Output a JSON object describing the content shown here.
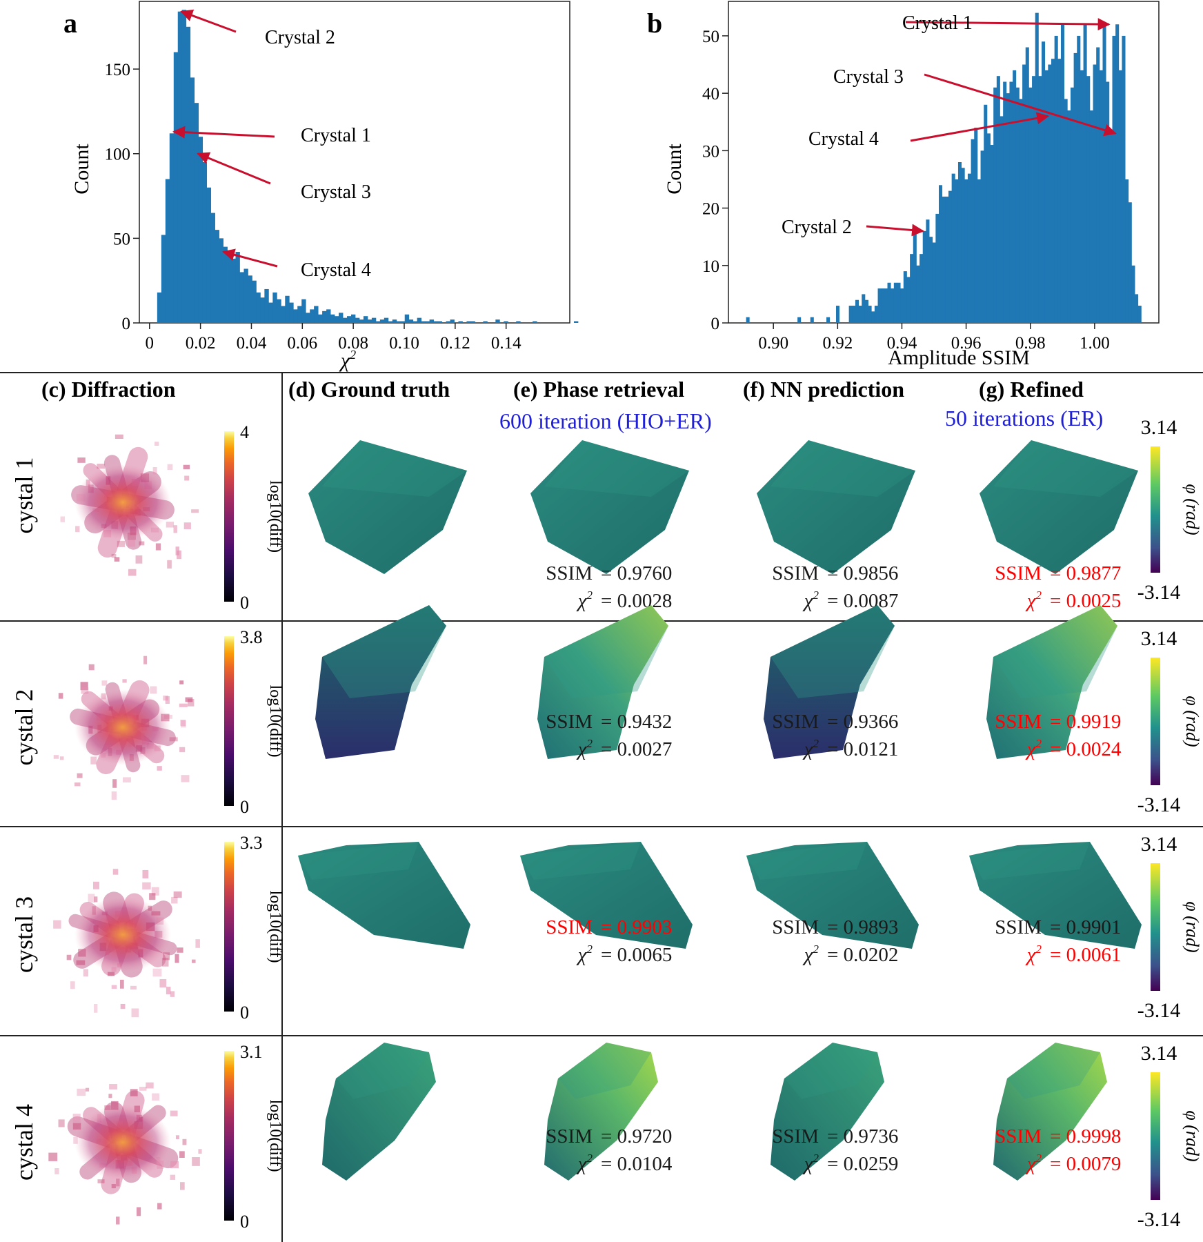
{
  "chart_data": [
    {
      "type": "bar",
      "panel_label": "a",
      "xlabel": "χ",
      "xlabel_superscript": "2",
      "ylabel": "Count",
      "xlim": [
        -0.004,
        0.165
      ],
      "ylim": [
        0,
        190
      ],
      "x_ticks": [
        "0",
        "0.02",
        "0.04",
        "0.06",
        "0.08",
        "0.10",
        "0.12",
        "0.14"
      ],
      "x_tick_values": [
        0,
        0.02,
        0.04,
        0.06,
        0.08,
        0.1,
        0.12,
        0.14
      ],
      "y_ticks": [
        "0",
        "50",
        "100",
        "150"
      ],
      "y_tick_values": [
        0,
        50,
        100,
        150
      ],
      "bin_start": 0.003,
      "bin_width": 0.00162,
      "values": [
        18,
        52,
        85,
        112,
        160,
        184,
        185,
        175,
        145,
        130,
        110,
        95,
        80,
        65,
        55,
        50,
        45,
        40,
        38,
        42,
        30,
        32,
        28,
        25,
        18,
        15,
        20,
        12,
        18,
        14,
        10,
        16,
        12,
        8,
        10,
        14,
        6,
        8,
        10,
        5,
        7,
        8,
        5,
        4,
        6,
        3,
        4,
        5,
        3,
        2,
        4,
        2,
        3,
        1,
        2,
        3,
        1,
        2,
        1,
        1,
        5,
        2,
        1,
        3,
        1,
        1,
        2,
        1,
        1,
        0,
        1,
        2,
        0,
        1,
        0,
        1,
        1,
        0,
        0,
        1,
        0,
        0,
        2,
        0,
        1,
        0,
        0,
        1,
        0,
        0,
        0,
        1,
        0,
        0,
        0,
        0,
        0,
        0,
        0,
        0,
        0,
        1
      ],
      "annotations": [
        {
          "label": "Crystal 2",
          "x": 0.0125,
          "y": 184
        },
        {
          "label": "Crystal 1",
          "x": 0.0095,
          "y": 113
        },
        {
          "label": "Crystal 3",
          "x": 0.019,
          "y": 100
        },
        {
          "label": "Crystal 4",
          "x": 0.029,
          "y": 42
        }
      ]
    },
    {
      "type": "bar",
      "panel_label": "b",
      "xlabel": "Amplitude SSIM",
      "ylabel": "Count",
      "xlim": [
        0.886,
        1.02
      ],
      "ylim": [
        0,
        56
      ],
      "x_ticks": [
        "0.90",
        "0.92",
        "0.94",
        "0.96",
        "0.98",
        "1.00"
      ],
      "x_tick_values": [
        0.9,
        0.92,
        0.94,
        0.96,
        0.98,
        1.0
      ],
      "y_ticks": [
        "0",
        "10",
        "20",
        "30",
        "40",
        "50"
      ],
      "y_tick_values": [
        0,
        10,
        20,
        30,
        40,
        50
      ],
      "bin_start": 0.8915,
      "bin_width": 0.001,
      "values": [
        1,
        0,
        0,
        0,
        0,
        0,
        0,
        0,
        0,
        0,
        0,
        0,
        0,
        0,
        0,
        0,
        1,
        0,
        0,
        0,
        1,
        0,
        0,
        0,
        0,
        1,
        0,
        0,
        3,
        0,
        0,
        0,
        3,
        3,
        4,
        3,
        5,
        4,
        3,
        2,
        3,
        6,
        6,
        6,
        7,
        6,
        7,
        7,
        6,
        9,
        8,
        12,
        16,
        10,
        12,
        16,
        18,
        15,
        14,
        19,
        24,
        22,
        22,
        23,
        26,
        25,
        28,
        27,
        25,
        26,
        32,
        34,
        25,
        30,
        38,
        33,
        31,
        41,
        43,
        36,
        42,
        40,
        42,
        44,
        41,
        39,
        45,
        48,
        41,
        43,
        54,
        43,
        49,
        44,
        45,
        46,
        50,
        46,
        52,
        39,
        37,
        41,
        47,
        50,
        44,
        52,
        43,
        37,
        45,
        48,
        44,
        52,
        42,
        33,
        50,
        52,
        44,
        50,
        25,
        21,
        10,
        5,
        3
      ],
      "annotations": [
        {
          "label": "Crystal 1",
          "x": 1.0045,
          "y": 52
        },
        {
          "label": "Crystal 3",
          "x": 1.0065,
          "y": 33
        },
        {
          "label": "Crystal 4",
          "x": 0.9855,
          "y": 36
        },
        {
          "label": "Crystal 2",
          "x": 0.9466,
          "y": 16
        }
      ]
    }
  ],
  "table": {
    "headers": {
      "diffraction": "(c) Diffraction",
      "ground_truth": "(d) Ground truth",
      "phase_retrieval": "(e) Phase retrieval",
      "nn_prediction": "(f) NN prediction",
      "refined": "(g) Refined"
    },
    "subheaders": {
      "phase_retrieval": "600 iteration (HIO+ER)",
      "refined": "50 iterations (ER)"
    },
    "colors": {
      "highlight": "#ff0000",
      "subheader": "#1f1fd6",
      "bar": "#1f77b4",
      "arrow": "#c8102e"
    },
    "diff_label": "log10(diff)",
    "phase_label": "φ (rad)",
    "phase_max": "3.14",
    "phase_min": "-3.14",
    "ssim_label": "SSIM",
    "chi_label": "χ",
    "chi_sup": "2",
    "rows": [
      {
        "label": "cystal 1",
        "diff_max": "4",
        "diff_min": "0",
        "e": {
          "ssim": "= 0.9760",
          "chi": "= 0.0028",
          "ssim_hl": false,
          "chi_hl": false
        },
        "f": {
          "ssim": "= 0.9856",
          "chi": "= 0.0087",
          "ssim_hl": false,
          "chi_hl": false
        },
        "g": {
          "ssim": "= 0.9877",
          "chi": "= 0.0025",
          "ssim_hl": true,
          "chi_hl": true
        }
      },
      {
        "label": "cystal 2",
        "diff_max": "3.8",
        "diff_min": "0",
        "e": {
          "ssim": "= 0.9432",
          "chi": "= 0.0027",
          "ssim_hl": false,
          "chi_hl": false
        },
        "f": {
          "ssim": "= 0.9366",
          "chi": "= 0.0121",
          "ssim_hl": false,
          "chi_hl": false
        },
        "g": {
          "ssim": "= 0.9919",
          "chi": "= 0.0024",
          "ssim_hl": true,
          "chi_hl": true
        }
      },
      {
        "label": "cystal 3",
        "diff_max": "3.3",
        "diff_min": "0",
        "e": {
          "ssim": "= 0.9903",
          "chi": "= 0.0065",
          "ssim_hl": true,
          "chi_hl": false
        },
        "f": {
          "ssim": "= 0.9893",
          "chi": "= 0.0202",
          "ssim_hl": false,
          "chi_hl": false
        },
        "g": {
          "ssim": "= 0.9901",
          "chi": "= 0.0061",
          "ssim_hl": false,
          "chi_hl": true
        }
      },
      {
        "label": "cystal 4",
        "diff_max": "3.1",
        "diff_min": "0",
        "e": {
          "ssim": "= 0.9720",
          "chi": "= 0.0104",
          "ssim_hl": false,
          "chi_hl": false
        },
        "f": {
          "ssim": "= 0.9736",
          "chi": "= 0.0259",
          "ssim_hl": false,
          "chi_hl": false
        },
        "g": {
          "ssim": "= 0.9998",
          "chi": "= 0.0079",
          "ssim_hl": true,
          "chi_hl": true
        }
      }
    ]
  }
}
